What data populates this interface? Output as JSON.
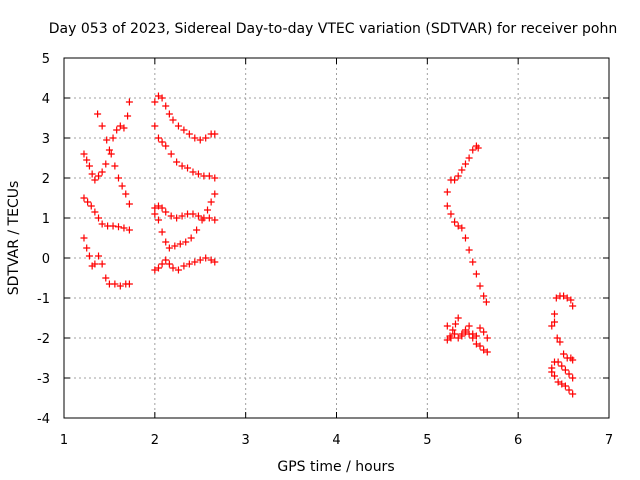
{
  "chart_data": {
    "type": "scatter",
    "title": "Day 053 of 2023, Sidereal Day-to-day VTEC variation (SDTVAR) for receiver pohn",
    "xlabel": "GPS time / hours",
    "ylabel": "SDTVAR / TECUs",
    "xlim": [
      1,
      7
    ],
    "ylim": [
      -4,
      5
    ],
    "xticks": [
      "1",
      "2",
      "3",
      "4",
      "5",
      "6",
      "7"
    ],
    "yticks": [
      "-4",
      "-3",
      "-2",
      "-1",
      "0",
      "1",
      "2",
      "3",
      "4",
      "5"
    ],
    "grid": true,
    "marker": "plus",
    "color": "#ff0000",
    "series": [
      {
        "values": [
          [
            1.22,
            2.6
          ],
          [
            1.25,
            2.45
          ],
          [
            1.28,
            2.3
          ],
          [
            1.31,
            2.1
          ],
          [
            1.34,
            1.95
          ],
          [
            1.38,
            2.05
          ],
          [
            1.42,
            2.15
          ],
          [
            1.46,
            2.35
          ],
          [
            1.5,
            2.7
          ],
          [
            1.54,
            3.0
          ],
          [
            1.58,
            3.2
          ],
          [
            1.62,
            3.3
          ],
          [
            1.66,
            3.25
          ],
          [
            1.7,
            3.55
          ],
          [
            1.72,
            3.9
          ]
        ]
      },
      {
        "values": [
          [
            1.37,
            3.6
          ],
          [
            1.42,
            3.3
          ],
          [
            1.47,
            2.95
          ],
          [
            1.52,
            2.6
          ],
          [
            1.56,
            2.3
          ],
          [
            1.6,
            2.0
          ],
          [
            1.64,
            1.8
          ],
          [
            1.68,
            1.6
          ],
          [
            1.72,
            1.35
          ]
        ]
      },
      {
        "values": [
          [
            1.22,
            1.5
          ],
          [
            1.26,
            1.4
          ],
          [
            1.3,
            1.3
          ],
          [
            1.34,
            1.15
          ],
          [
            1.38,
            1.0
          ],
          [
            1.42,
            0.85
          ],
          [
            1.48,
            0.8
          ],
          [
            1.54,
            0.8
          ],
          [
            1.6,
            0.78
          ],
          [
            1.66,
            0.75
          ],
          [
            1.72,
            0.7
          ]
        ]
      },
      {
        "values": [
          [
            1.22,
            0.5
          ],
          [
            1.25,
            0.25
          ],
          [
            1.28,
            0.05
          ],
          [
            1.31,
            -0.2
          ],
          [
            1.34,
            -0.15
          ],
          [
            1.38,
            0.05
          ],
          [
            1.42,
            -0.15
          ],
          [
            1.46,
            -0.5
          ],
          [
            1.5,
            -0.65
          ],
          [
            1.56,
            -0.65
          ],
          [
            1.62,
            -0.7
          ],
          [
            1.68,
            -0.65
          ],
          [
            1.72,
            -0.65
          ]
        ]
      },
      {
        "values": [
          [
            2.0,
            3.9
          ],
          [
            2.04,
            4.05
          ],
          [
            2.08,
            4.0
          ],
          [
            2.12,
            3.8
          ],
          [
            2.16,
            3.6
          ],
          [
            2.2,
            3.45
          ],
          [
            2.26,
            3.3
          ],
          [
            2.32,
            3.2
          ],
          [
            2.38,
            3.1
          ],
          [
            2.44,
            3.0
          ],
          [
            2.5,
            2.95
          ],
          [
            2.56,
            3.0
          ],
          [
            2.62,
            3.1
          ],
          [
            2.66,
            3.1
          ]
        ]
      },
      {
        "values": [
          [
            2.0,
            3.3
          ],
          [
            2.04,
            3.0
          ],
          [
            2.08,
            2.9
          ],
          [
            2.12,
            2.8
          ],
          [
            2.18,
            2.6
          ],
          [
            2.24,
            2.4
          ],
          [
            2.3,
            2.3
          ],
          [
            2.36,
            2.25
          ],
          [
            2.42,
            2.15
          ],
          [
            2.48,
            2.1
          ],
          [
            2.54,
            2.05
          ],
          [
            2.6,
            2.05
          ],
          [
            2.66,
            2.0
          ]
        ]
      },
      {
        "values": [
          [
            2.0,
            1.25
          ],
          [
            2.04,
            1.3
          ],
          [
            2.08,
            1.25
          ],
          [
            2.12,
            1.15
          ],
          [
            2.18,
            1.05
          ],
          [
            2.24,
            1.0
          ],
          [
            2.3,
            1.05
          ],
          [
            2.36,
            1.1
          ],
          [
            2.42,
            1.1
          ],
          [
            2.48,
            1.05
          ],
          [
            2.54,
            1.0
          ],
          [
            2.6,
            1.0
          ],
          [
            2.66,
            0.95
          ]
        ]
      },
      {
        "values": [
          [
            2.0,
            1.1
          ],
          [
            2.04,
            0.95
          ],
          [
            2.08,
            0.65
          ],
          [
            2.12,
            0.4
          ],
          [
            2.16,
            0.25
          ],
          [
            2.22,
            0.3
          ],
          [
            2.28,
            0.35
          ],
          [
            2.34,
            0.4
          ],
          [
            2.4,
            0.5
          ],
          [
            2.46,
            0.7
          ],
          [
            2.52,
            0.95
          ],
          [
            2.58,
            1.2
          ],
          [
            2.62,
            1.4
          ],
          [
            2.66,
            1.6
          ]
        ]
      },
      {
        "values": [
          [
            2.0,
            -0.3
          ],
          [
            2.04,
            -0.25
          ],
          [
            2.08,
            -0.15
          ],
          [
            2.12,
            -0.05
          ],
          [
            2.16,
            -0.15
          ],
          [
            2.2,
            -0.25
          ],
          [
            2.26,
            -0.3
          ],
          [
            2.32,
            -0.2
          ],
          [
            2.38,
            -0.15
          ],
          [
            2.44,
            -0.1
          ],
          [
            2.5,
            -0.05
          ],
          [
            2.56,
            0.0
          ],
          [
            2.62,
            -0.05
          ],
          [
            2.66,
            -0.1
          ]
        ]
      },
      {
        "values": [
          [
            5.22,
            1.65
          ],
          [
            5.26,
            1.95
          ],
          [
            5.3,
            1.95
          ],
          [
            5.34,
            2.05
          ],
          [
            5.38,
            2.2
          ],
          [
            5.42,
            2.35
          ],
          [
            5.46,
            2.5
          ],
          [
            5.5,
            2.7
          ],
          [
            5.54,
            2.8
          ],
          [
            5.56,
            2.75
          ]
        ]
      },
      {
        "values": [
          [
            5.22,
            1.3
          ],
          [
            5.26,
            1.1
          ],
          [
            5.3,
            0.9
          ],
          [
            5.34,
            0.8
          ],
          [
            5.38,
            0.75
          ],
          [
            5.42,
            0.5
          ],
          [
            5.46,
            0.2
          ],
          [
            5.5,
            -0.1
          ],
          [
            5.54,
            -0.4
          ],
          [
            5.58,
            -0.7
          ],
          [
            5.62,
            -0.95
          ],
          [
            5.65,
            -1.1
          ]
        ]
      },
      {
        "values": [
          [
            5.22,
            -1.7
          ],
          [
            5.25,
            -1.95
          ],
          [
            5.28,
            -1.8
          ],
          [
            5.31,
            -1.65
          ],
          [
            5.34,
            -1.5
          ],
          [
            5.38,
            -1.9
          ],
          [
            5.42,
            -1.8
          ],
          [
            5.46,
            -1.7
          ],
          [
            5.5,
            -1.9
          ],
          [
            5.54,
            -1.95
          ],
          [
            5.58,
            -1.75
          ],
          [
            5.62,
            -1.85
          ],
          [
            5.66,
            -2.0
          ]
        ]
      },
      {
        "values": [
          [
            5.22,
            -2.05
          ],
          [
            5.26,
            -2.0
          ],
          [
            5.3,
            -1.9
          ],
          [
            5.34,
            -2.0
          ],
          [
            5.38,
            -1.95
          ],
          [
            5.42,
            -1.85
          ],
          [
            5.46,
            -1.9
          ],
          [
            5.5,
            -2.0
          ],
          [
            5.54,
            -2.15
          ],
          [
            5.58,
            -2.2
          ],
          [
            5.62,
            -2.3
          ],
          [
            5.66,
            -2.35
          ]
        ]
      },
      {
        "values": [
          [
            6.37,
            -1.7
          ],
          [
            6.4,
            -1.4
          ],
          [
            6.42,
            -1.0
          ],
          [
            6.46,
            -0.95
          ],
          [
            6.5,
            -0.95
          ],
          [
            6.54,
            -1.0
          ],
          [
            6.58,
            -1.05
          ],
          [
            6.6,
            -1.2
          ]
        ]
      },
      {
        "values": [
          [
            6.4,
            -1.6
          ],
          [
            6.43,
            -2.0
          ],
          [
            6.46,
            -2.1
          ],
          [
            6.5,
            -2.4
          ],
          [
            6.54,
            -2.5
          ],
          [
            6.58,
            -2.5
          ],
          [
            6.6,
            -2.55
          ]
        ]
      },
      {
        "values": [
          [
            6.37,
            -2.75
          ],
          [
            6.4,
            -2.6
          ],
          [
            6.44,
            -2.6
          ],
          [
            6.48,
            -2.7
          ],
          [
            6.52,
            -2.8
          ],
          [
            6.56,
            -2.9
          ],
          [
            6.6,
            -3.0
          ]
        ]
      },
      {
        "values": [
          [
            6.37,
            -2.85
          ],
          [
            6.4,
            -2.95
          ],
          [
            6.44,
            -3.1
          ],
          [
            6.48,
            -3.15
          ],
          [
            6.52,
            -3.2
          ],
          [
            6.56,
            -3.3
          ],
          [
            6.6,
            -3.4
          ]
        ]
      }
    ]
  }
}
